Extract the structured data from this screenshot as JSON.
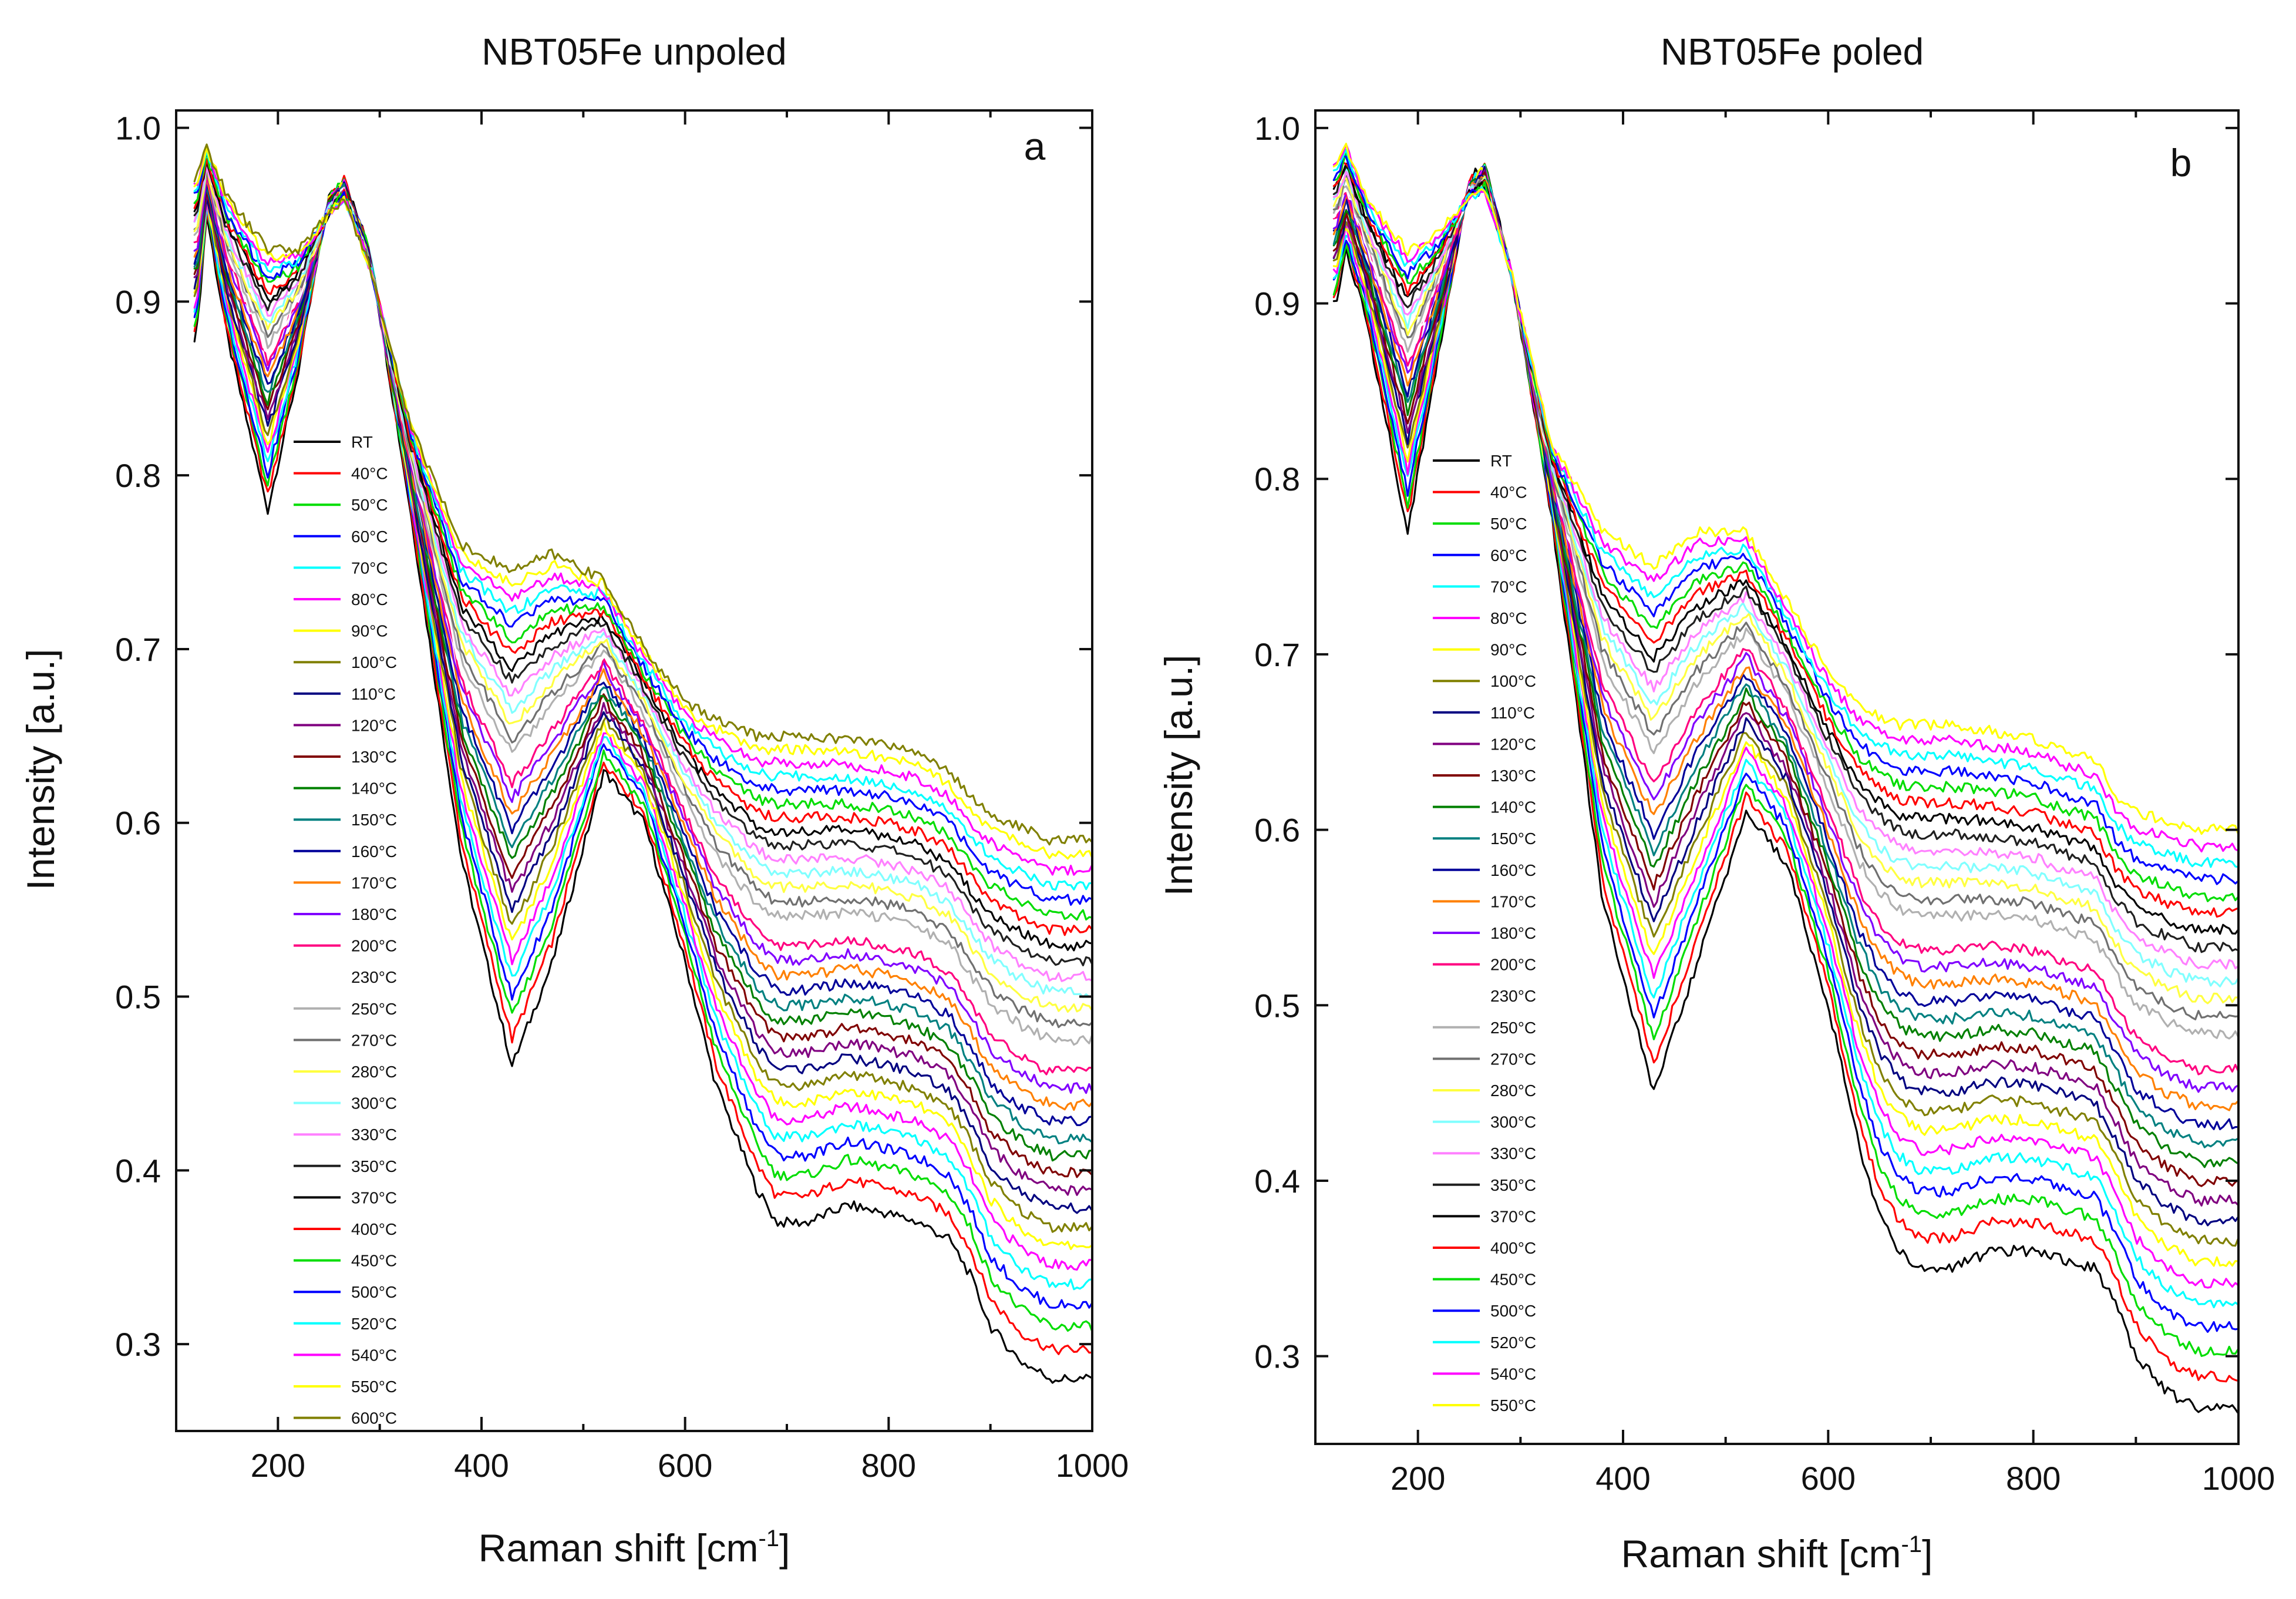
{
  "colors": [
    "#000000",
    "#ff0000",
    "#00dd00",
    "#0000ff",
    "#00ffff",
    "#ff00ff",
    "#ffff00",
    "#808000",
    "#000080",
    "#800080",
    "#800000",
    "#008000",
    "#008080",
    "#000099",
    "#ff8000",
    "#8000ff",
    "#ff0080",
    "#ffffff",
    "#b0b0b0",
    "#707070",
    "#ffff40",
    "#80ffff",
    "#ff80ff",
    "#202020",
    "#000000",
    "#ff0000",
    "#00dd00",
    "#0000ff",
    "#00ffff",
    "#ff00ff",
    "#ffff00",
    "#808000"
  ],
  "chart_data": [
    {
      "type": "line",
      "title": "NBT05Fe unpoled",
      "panel_label": "a",
      "xlabel": "Raman shift [cm",
      "xlabel_sup": "-1",
      "xlabel_end": "]",
      "ylabel": "Intensity [a.u.]",
      "xlim": [
        100,
        1000
      ],
      "ylim": [
        0.25,
        1.01
      ],
      "xticks": [
        200,
        400,
        600,
        800,
        1000
      ],
      "xtick_labels": [
        "200",
        "400",
        "600",
        "800",
        "1000"
      ],
      "yticks": [
        0.3,
        0.4,
        0.5,
        0.6,
        0.7,
        0.8,
        0.9,
        1.0
      ],
      "ytick_labels": [
        "0.3",
        "0.4",
        "0.5",
        "0.6",
        "0.7",
        "0.8",
        "0.9",
        "1.0"
      ],
      "legend": [
        "RT",
        "40°C",
        "50°C",
        "60°C",
        "70°C",
        "80°C",
        "90°C",
        "100°C",
        "110°C",
        "120°C",
        "130°C",
        "140°C",
        "150°C",
        "160°C",
        "170°C",
        "180°C",
        "200°C",
        "230°C",
        "250°C",
        "270°C",
        "280°C",
        "300°C",
        "330°C",
        "350°C",
        "370°C",
        "400°C",
        "450°C",
        "500°C",
        "520°C",
        "540°C",
        "550°C",
        "600°C"
      ],
      "series_shape": {
        "x": [
          120,
          130,
          150,
          190,
          220,
          250,
          265,
          290,
          330,
          380,
          430,
          470,
          520,
          560,
          600,
          630,
          650,
          670,
          690,
          720,
          760,
          800,
          830,
          860,
          880,
          900,
          930,
          960,
          1000
        ],
        "y_low": [
          0.88,
          0.95,
          0.88,
          0.78,
          0.86,
          0.96,
          0.97,
          0.93,
          0.78,
          0.58,
          0.46,
          0.52,
          0.63,
          0.6,
          0.52,
          0.45,
          0.42,
          0.39,
          0.37,
          0.37,
          0.38,
          0.375,
          0.37,
          0.36,
          0.34,
          0.31,
          0.29,
          0.28,
          0.28
        ],
        "y_high": [
          0.97,
          0.99,
          0.96,
          0.93,
          0.93,
          0.95,
          0.96,
          0.92,
          0.83,
          0.76,
          0.745,
          0.755,
          0.74,
          0.7,
          0.67,
          0.66,
          0.655,
          0.65,
          0.65,
          0.65,
          0.648,
          0.645,
          0.64,
          0.63,
          0.615,
          0.605,
          0.597,
          0.59,
          0.59
        ]
      }
    },
    {
      "type": "line",
      "title": "NBT05Fe poled",
      "panel_label": "b",
      "xlabel": "Raman shift [cm",
      "xlabel_sup": "-1",
      "xlabel_end": "]",
      "ylabel": "Intensity [a.u.]",
      "xlim": [
        100,
        1000
      ],
      "ylim": [
        0.25,
        1.01
      ],
      "xticks": [
        200,
        400,
        600,
        800,
        1000
      ],
      "xtick_labels": [
        "200",
        "400",
        "600",
        "800",
        "1000"
      ],
      "yticks": [
        0.3,
        0.4,
        0.5,
        0.6,
        0.7,
        0.8,
        0.9,
        1.0
      ],
      "ytick_labels": [
        "0.3",
        "0.4",
        "0.5",
        "0.6",
        "0.7",
        "0.8",
        "0.9",
        "1.0"
      ],
      "legend": [
        "RT",
        "40°C",
        "50°C",
        "60°C",
        "70°C",
        "80°C",
        "90°C",
        "100°C",
        "110°C",
        "120°C",
        "130°C",
        "140°C",
        "150°C",
        "160°C",
        "170°C",
        "180°C",
        "200°C",
        "230°C",
        "250°C",
        "270°C",
        "280°C",
        "300°C",
        "330°C",
        "350°C",
        "370°C",
        "400°C",
        "450°C",
        "500°C",
        "520°C",
        "540°C",
        "550°C"
      ],
      "series_shape": {
        "x": [
          120,
          130,
          150,
          190,
          220,
          250,
          265,
          290,
          330,
          380,
          430,
          470,
          520,
          560,
          600,
          630,
          650,
          670,
          690,
          720,
          760,
          800,
          830,
          860,
          880,
          900,
          930,
          960,
          1000
        ],
        "y_low": [
          0.9,
          0.93,
          0.89,
          0.77,
          0.87,
          0.97,
          0.98,
          0.92,
          0.78,
          0.56,
          0.45,
          0.52,
          0.61,
          0.58,
          0.5,
          0.42,
          0.38,
          0.36,
          0.35,
          0.35,
          0.36,
          0.36,
          0.355,
          0.35,
          0.33,
          0.3,
          0.28,
          0.27,
          0.27
        ],
        "y_high": [
          0.98,
          0.99,
          0.96,
          0.93,
          0.94,
          0.96,
          0.965,
          0.92,
          0.82,
          0.77,
          0.75,
          0.77,
          0.77,
          0.73,
          0.69,
          0.67,
          0.665,
          0.66,
          0.66,
          0.66,
          0.656,
          0.652,
          0.645,
          0.64,
          0.62,
          0.61,
          0.605,
          0.6,
          0.6
        ]
      }
    }
  ]
}
